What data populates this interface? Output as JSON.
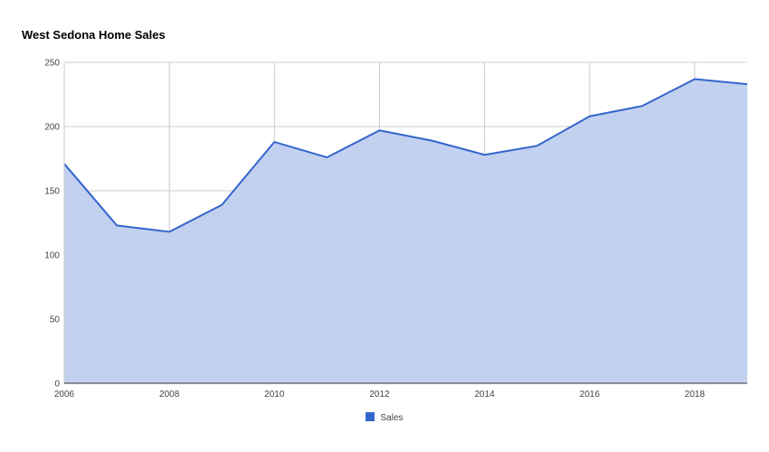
{
  "chart_data": {
    "type": "area",
    "title": "West Sedona Home Sales",
    "xlabel": "",
    "ylabel": "",
    "x": [
      2006,
      2007,
      2008,
      2009,
      2010,
      2011,
      2012,
      2013,
      2014,
      2015,
      2016,
      2017,
      2018,
      2019
    ],
    "series": [
      {
        "name": "Sales",
        "values": [
          171,
          123,
          118,
          139,
          188,
          176,
          197,
          189,
          178,
          185,
          208,
          216,
          237,
          233
        ]
      }
    ],
    "xlim": [
      2006,
      2019
    ],
    "ylim": [
      0,
      250
    ],
    "x_ticks": [
      2006,
      2008,
      2010,
      2012,
      2014,
      2016,
      2018
    ],
    "y_ticks": [
      0,
      50,
      100,
      150,
      200,
      250
    ],
    "grid": true,
    "legend": "bottom",
    "colors": {
      "line": "#3366cc",
      "fill": "#c2d1f0",
      "grid": "#cccccc",
      "baseline": "#333333"
    }
  }
}
